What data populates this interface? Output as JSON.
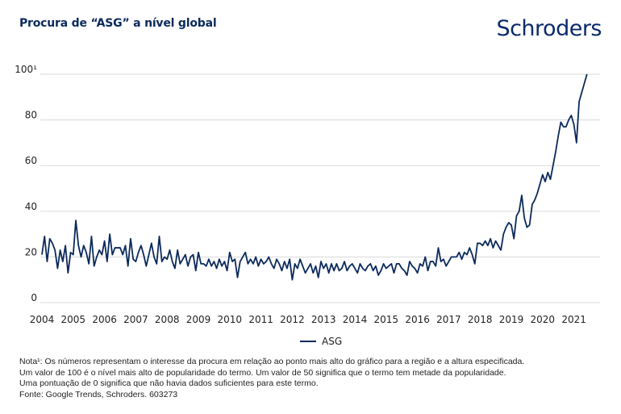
{
  "header": {
    "title": "Procura de “ASG” a nível global",
    "brand": "Schroders"
  },
  "colors": {
    "line": "#0b2a5b",
    "grid": "#d9d9d9",
    "title": "#0b2a5b"
  },
  "chart_data": {
    "type": "line",
    "title": "Procura de “ASG” a nível global",
    "xlabel": "",
    "ylabel": "",
    "ylim": [
      0,
      100
    ],
    "xlim": [
      2004,
      2021.85
    ],
    "yticks": [
      0,
      20,
      40,
      60,
      80,
      100
    ],
    "ytick_labels": [
      "0",
      "20",
      "40",
      "60",
      "80",
      "100¹"
    ],
    "xtick_labels": [
      "2004",
      "2005",
      "2006",
      "2007",
      "2008",
      "2009",
      "2010",
      "2011",
      "2012",
      "2013",
      "2014",
      "2015",
      "2016",
      "2017",
      "2018",
      "2019",
      "2020",
      "2021"
    ],
    "grid": "horizontal",
    "legend": "bottom-center",
    "frequency": "monthly",
    "start": "2004-01",
    "series": [
      {
        "name": "ASG",
        "values": [
          21,
          29,
          18,
          28,
          26,
          23,
          15,
          23,
          18,
          25,
          13,
          22,
          21,
          36,
          25,
          20,
          25,
          22,
          17,
          29,
          16,
          20,
          23,
          21,
          27,
          18,
          30,
          21,
          24,
          24,
          24,
          21,
          25,
          16,
          28,
          19,
          18,
          22,
          25,
          21,
          16,
          21,
          26,
          20,
          17,
          29,
          18,
          20,
          19,
          23,
          18,
          15,
          23,
          17,
          19,
          21,
          16,
          20,
          21,
          14,
          22,
          17,
          17,
          16,
          19,
          16,
          18,
          15,
          19,
          16,
          18,
          14,
          22,
          18,
          19,
          11,
          18,
          20,
          22,
          17,
          19,
          17,
          20,
          16,
          19,
          17,
          18,
          20,
          17,
          15,
          19,
          17,
          14,
          18,
          15,
          19,
          10,
          17,
          15,
          19,
          16,
          13,
          15,
          17,
          13,
          16,
          11,
          18,
          15,
          17,
          13,
          17,
          14,
          17,
          14,
          15,
          18,
          14,
          16,
          17,
          15,
          13,
          17,
          15,
          14,
          16,
          17,
          14,
          16,
          12,
          14,
          17,
          15,
          16,
          17,
          13,
          17,
          17,
          15,
          14,
          12,
          18,
          16,
          15,
          13,
          17,
          16,
          20,
          14,
          18,
          18,
          16,
          24,
          18,
          19,
          16,
          18,
          20,
          20,
          20,
          22,
          19,
          22,
          21,
          24,
          21,
          17,
          26,
          26,
          25,
          27,
          25,
          28,
          24,
          27,
          25,
          23,
          30,
          33,
          35,
          34,
          28,
          38,
          40,
          47,
          37,
          33,
          34,
          43,
          45,
          48,
          52,
          56,
          53,
          57,
          54,
          60,
          66,
          73,
          79,
          77,
          77,
          80,
          82,
          78,
          70,
          88,
          92,
          96,
          100
        ]
      }
    ]
  },
  "legend": {
    "items": [
      {
        "label": "ASG"
      }
    ]
  },
  "notes": {
    "line1": "Nota¹: Os números representam o interesse da procura em relação ao ponto mais alto do gráfico para a região e a altura especificada.",
    "line2": "Um valor de 100 é o nível mais alto de popularidade do termo. Um valor de 50 significa que o termo tem metade da popularidade.",
    "line3": "Uma pontuação de 0 significa que não havia dados suficientes para este termo.",
    "source": "Fonte: Google Trends, Schroders. 603273"
  }
}
